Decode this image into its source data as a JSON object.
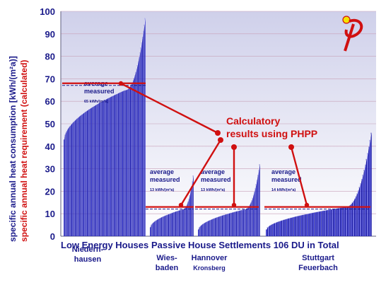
{
  "chart_data": {
    "type": "bar",
    "ylabel_measured": "specific annual heat consumption   [kWh/(m²a)]",
    "ylabel_calculated": "specific annual heat requirement (calculated)",
    "ylim": [
      0,
      100
    ],
    "yticks": [
      0,
      10,
      20,
      30,
      40,
      50,
      60,
      70,
      80,
      90,
      100
    ],
    "grid": true,
    "groups": [
      {
        "id": "niedernhausen",
        "label": "Low Energy Houses",
        "location": "Niedern-\nhausen",
        "location_sub": "",
        "n_bars": 95,
        "min_value": 43,
        "mid_value": 65,
        "max_value": 97,
        "average_label": "average\nmeasured",
        "average_value_text": "65 kWh/(m²a)",
        "calculated": 68
      },
      {
        "id": "wiesbaden",
        "label": "",
        "location": "Wies-\nbaden",
        "location_sub": "",
        "n_bars": 50,
        "min_value": 4,
        "mid_value": 12,
        "max_value": 27,
        "average_label": "average\nmeasured",
        "average_value_text": "13 kWh/(m²a)",
        "calculated": 13
      },
      {
        "id": "hannover",
        "label": "",
        "location": "Hannover",
        "location_sub": "Kronsberg",
        "n_bars": 70,
        "min_value": 3,
        "mid_value": 12,
        "max_value": 32,
        "average_label": "average\nmeasured",
        "average_value_text": "13 kWh/(m²a)",
        "calculated": 13
      },
      {
        "id": "stuttgart",
        "label": "",
        "location": "Stuttgart\nFeuerbach",
        "location_sub": "",
        "n_bars": 90,
        "min_value": 3,
        "mid_value": 13,
        "max_value": 46,
        "average_label": "average\nmeasured",
        "average_value_text": "14 kWh/(m²a)",
        "calculated": 13
      }
    ],
    "passive_label": "Passive House Settlements 106 DU in Total",
    "callout": "Calculatory\nresults using PHPP",
    "colors": {
      "bar": "#1a1aa6",
      "bar_light": "#3b3bd0",
      "plot_bg_top": "#d8d8ec",
      "plot_bg_bottom": "#ffffff",
      "grid": "#c8a0b8",
      "axis_text": "#1a1a8a",
      "red": "#d01010"
    },
    "logo": "phi-icon"
  }
}
